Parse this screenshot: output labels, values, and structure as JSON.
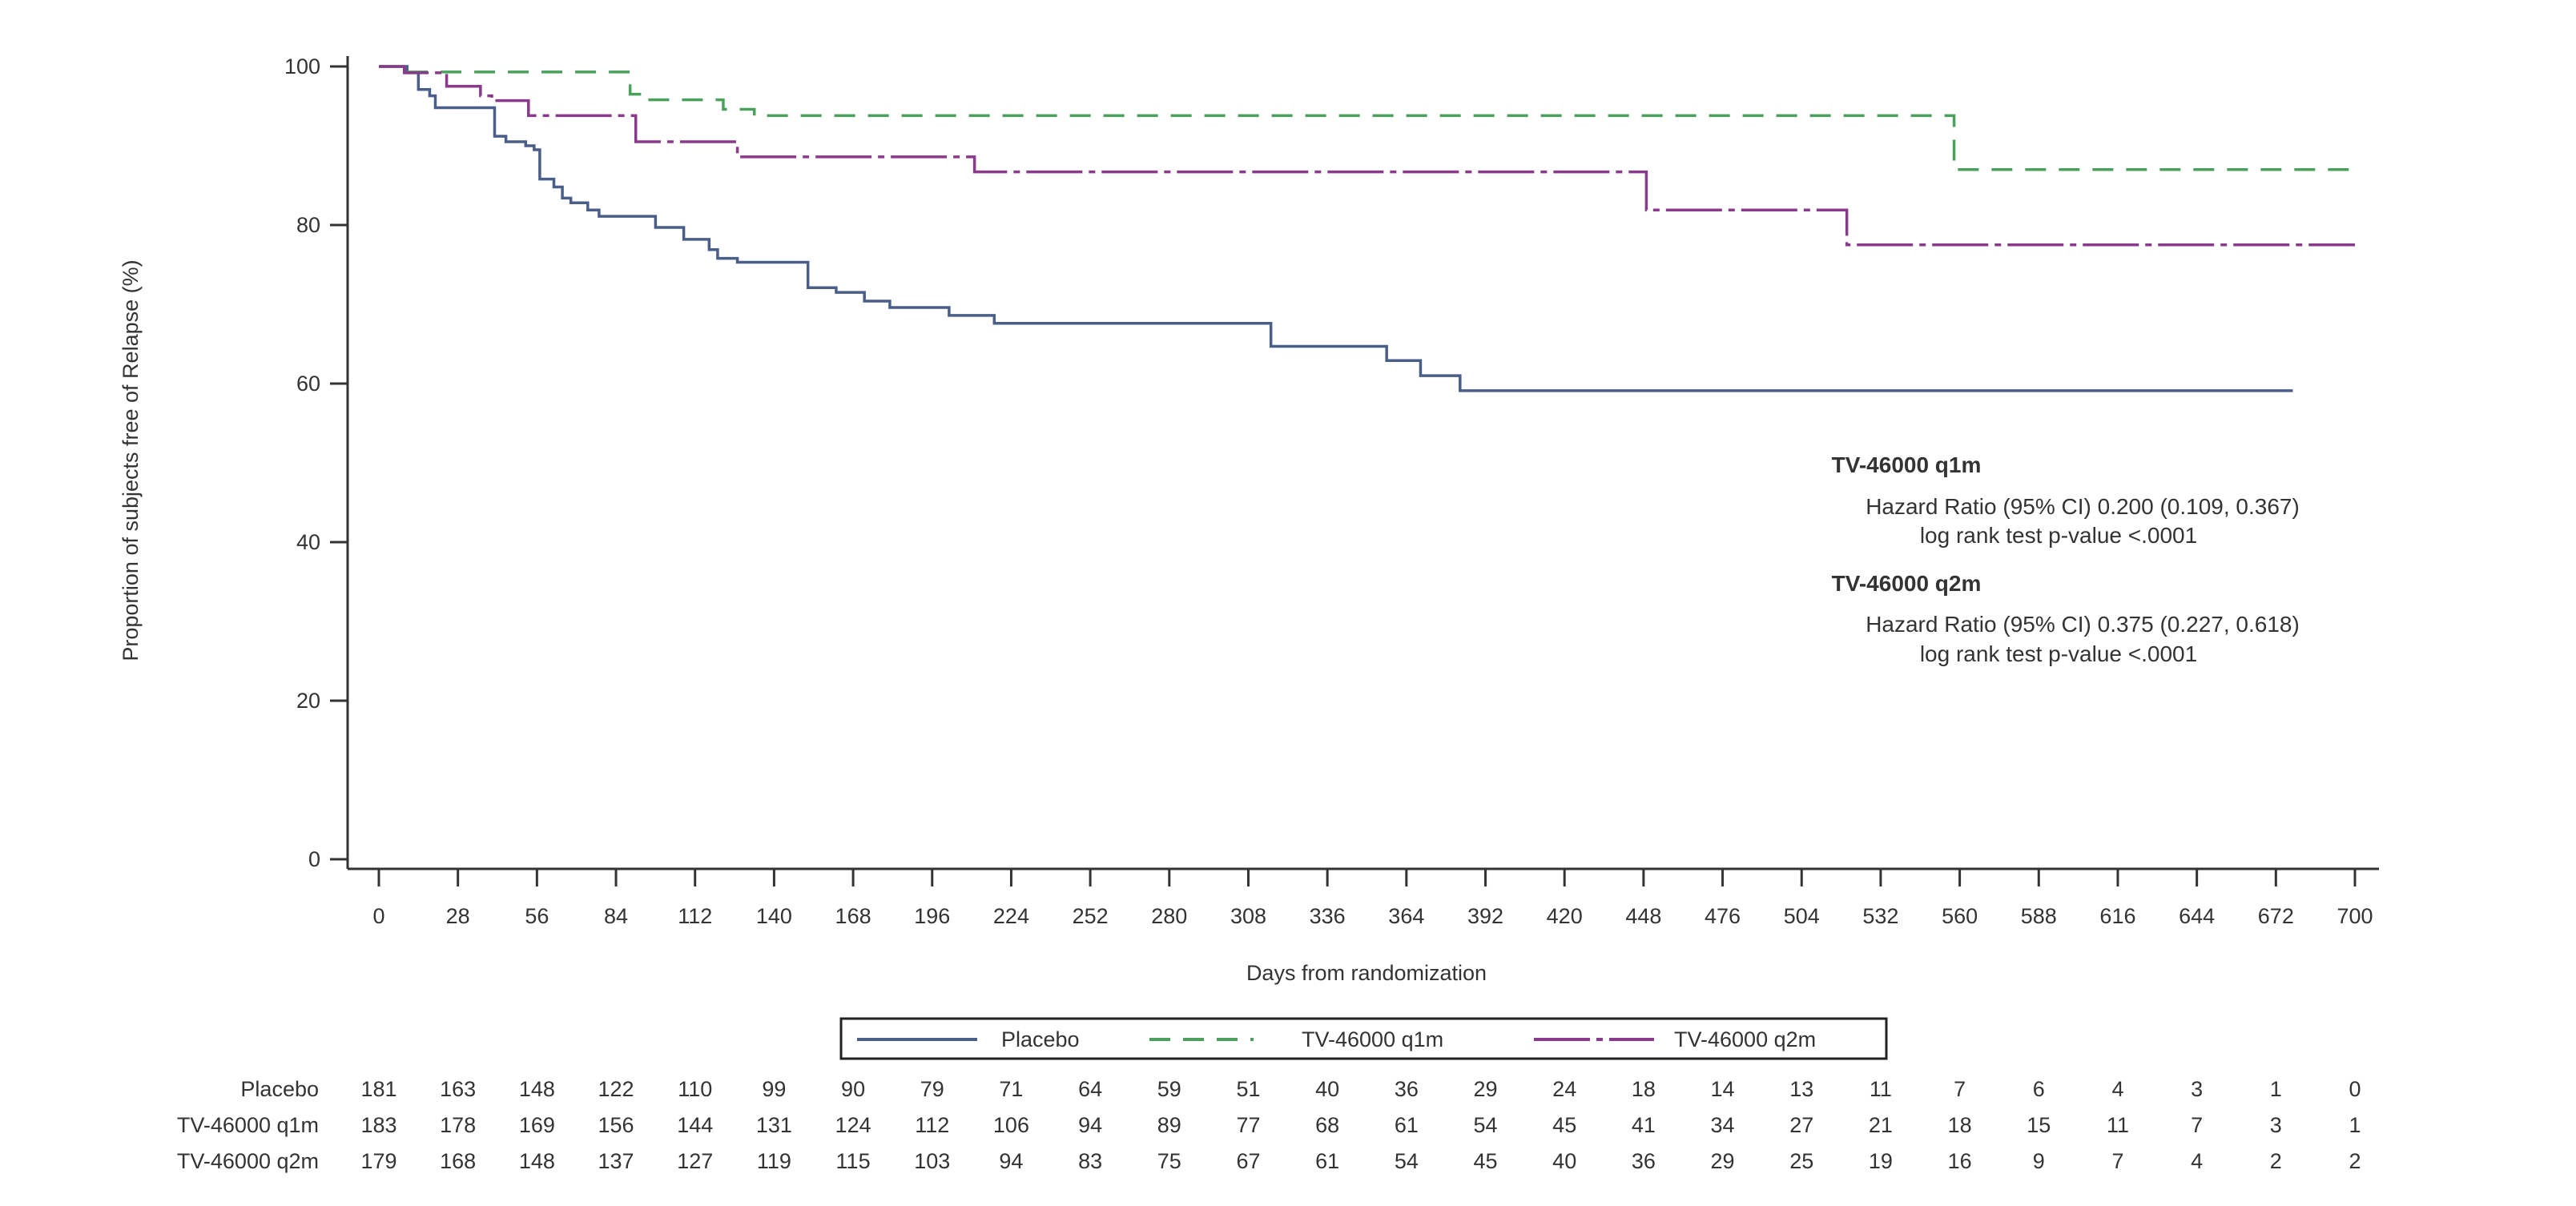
{
  "chart_data": {
    "type": "line",
    "subtype": "kaplan-meier step",
    "xlabel": "Days from randomization",
    "ylabel": "Proportion of subjects free of Relapse (%)",
    "xlim": [
      0,
      700
    ],
    "ylim": [
      0,
      100
    ],
    "xticks": [
      0,
      28,
      56,
      84,
      112,
      140,
      168,
      196,
      224,
      252,
      280,
      308,
      336,
      364,
      392,
      420,
      448,
      476,
      504,
      532,
      560,
      588,
      616,
      644,
      672,
      700
    ],
    "yticks": [
      0,
      20,
      40,
      60,
      80,
      100
    ],
    "grid": false,
    "legend_position": "bottom",
    "series": [
      {
        "name": "Placebo",
        "color": "#4a5e8a",
        "style": "solid",
        "steps": [
          [
            0,
            100
          ],
          [
            10,
            99.2
          ],
          [
            14,
            97.1
          ],
          [
            18,
            96.3
          ],
          [
            20,
            94.8
          ],
          [
            41,
            91.2
          ],
          [
            45,
            90.5
          ],
          [
            52,
            90.0
          ],
          [
            55,
            89.5
          ],
          [
            57,
            85.8
          ],
          [
            62,
            84.8
          ],
          [
            65,
            83.4
          ],
          [
            68,
            82.8
          ],
          [
            74,
            81.9
          ],
          [
            78,
            81.1
          ],
          [
            98,
            79.7
          ],
          [
            108,
            78.2
          ],
          [
            117,
            76.9
          ],
          [
            120,
            75.8
          ],
          [
            127,
            75.3
          ],
          [
            152,
            72.1
          ],
          [
            162,
            71.5
          ],
          [
            172,
            70.4
          ],
          [
            181,
            69.6
          ],
          [
            202,
            68.6
          ],
          [
            218,
            67.6
          ],
          [
            316,
            64.7
          ],
          [
            357,
            62.9
          ],
          [
            369,
            61.0
          ],
          [
            383,
            59.1
          ],
          [
            678,
            59.1
          ]
        ]
      },
      {
        "name": "TV-46000 q1m",
        "color": "#4aa05c",
        "style": "dashed",
        "steps": [
          [
            0,
            100
          ],
          [
            10,
            99.3
          ],
          [
            89,
            96.5
          ],
          [
            93,
            95.8
          ],
          [
            122,
            94.6
          ],
          [
            133,
            93.8
          ],
          [
            558,
            87.0
          ],
          [
            700,
            87.0
          ]
        ]
      },
      {
        "name": "TV-46000 q2m",
        "color": "#8a3a8a",
        "style": "dashdot",
        "steps": [
          [
            0,
            100
          ],
          [
            9,
            99.2
          ],
          [
            24,
            97.5
          ],
          [
            36,
            96.3
          ],
          [
            40,
            95.7
          ],
          [
            53,
            93.8
          ],
          [
            91,
            90.5
          ],
          [
            127,
            88.6
          ],
          [
            211,
            86.7
          ],
          [
            449,
            81.9
          ],
          [
            520,
            77.5
          ],
          [
            700,
            77.5
          ]
        ]
      }
    ],
    "annotations": [
      {
        "title": "TV-46000 q1m",
        "hr": "Hazard Ratio (95% CI) 0.200 (0.109, 0.367)",
        "p": "log rank test p-value <.0001"
      },
      {
        "title": "TV-46000 q2m",
        "hr": "Hazard Ratio (95% CI) 0.375 (0.227, 0.618)",
        "p": "log rank test p-value <.0001"
      }
    ],
    "risk_table": [
      {
        "label": "Placebo",
        "values": [
          181,
          163,
          148,
          122,
          110,
          99,
          90,
          79,
          71,
          64,
          59,
          51,
          40,
          36,
          29,
          24,
          18,
          14,
          13,
          11,
          7,
          6,
          4,
          3,
          1,
          0
        ]
      },
      {
        "label": "TV-46000 q1m",
        "values": [
          183,
          178,
          169,
          156,
          144,
          131,
          124,
          112,
          106,
          94,
          89,
          77,
          68,
          61,
          54,
          45,
          41,
          34,
          27,
          21,
          18,
          15,
          11,
          7,
          3,
          1
        ]
      },
      {
        "label": "TV-46000 q2m",
        "values": [
          179,
          168,
          148,
          137,
          127,
          119,
          115,
          103,
          94,
          83,
          75,
          67,
          61,
          54,
          45,
          40,
          36,
          29,
          25,
          19,
          16,
          9,
          7,
          4,
          2,
          2
        ]
      }
    ]
  }
}
